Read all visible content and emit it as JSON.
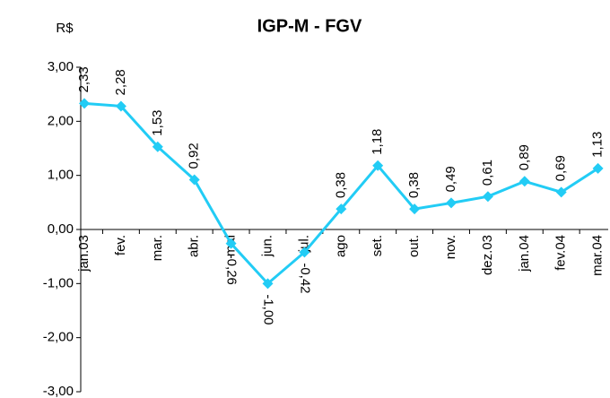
{
  "chart_data": {
    "type": "line",
    "title": "IGP-M - FGV",
    "y_label": "R$",
    "categories": [
      "jan.03",
      "fev.",
      "mar.",
      "abr.",
      "mai",
      "jun.",
      "jul.",
      "ago",
      "set.",
      "out.",
      "nov.",
      "dez.03",
      "jan.04",
      "fev.04",
      "mar.04"
    ],
    "series": [
      {
        "color": "#22ccf5",
        "values": [
          2.33,
          2.28,
          1.53,
          0.92,
          -0.26,
          -1.0,
          -0.42,
          0.38,
          1.18,
          0.38,
          0.49,
          0.61,
          0.89,
          0.69,
          1.13
        ],
        "value_labels": [
          "2,33",
          "2,28",
          "1,53",
          "0,92",
          "-0,26",
          "-1,00",
          "-0,42",
          "0,38",
          "1,18",
          "0,38",
          "0,49",
          "0,61",
          "0,89",
          "0,69",
          "1,13"
        ]
      }
    ],
    "ylim": [
      -3,
      3
    ],
    "yticks": [
      {
        "value": -3,
        "label": "-3,00"
      },
      {
        "value": -2,
        "label": "-2,00"
      },
      {
        "value": -1,
        "label": "-1,00"
      },
      {
        "value": 0,
        "label": "0,00"
      },
      {
        "value": 1,
        "label": "1,00"
      },
      {
        "value": 2,
        "label": "2,00"
      },
      {
        "value": 3,
        "label": "3,00"
      }
    ],
    "grid": false
  }
}
